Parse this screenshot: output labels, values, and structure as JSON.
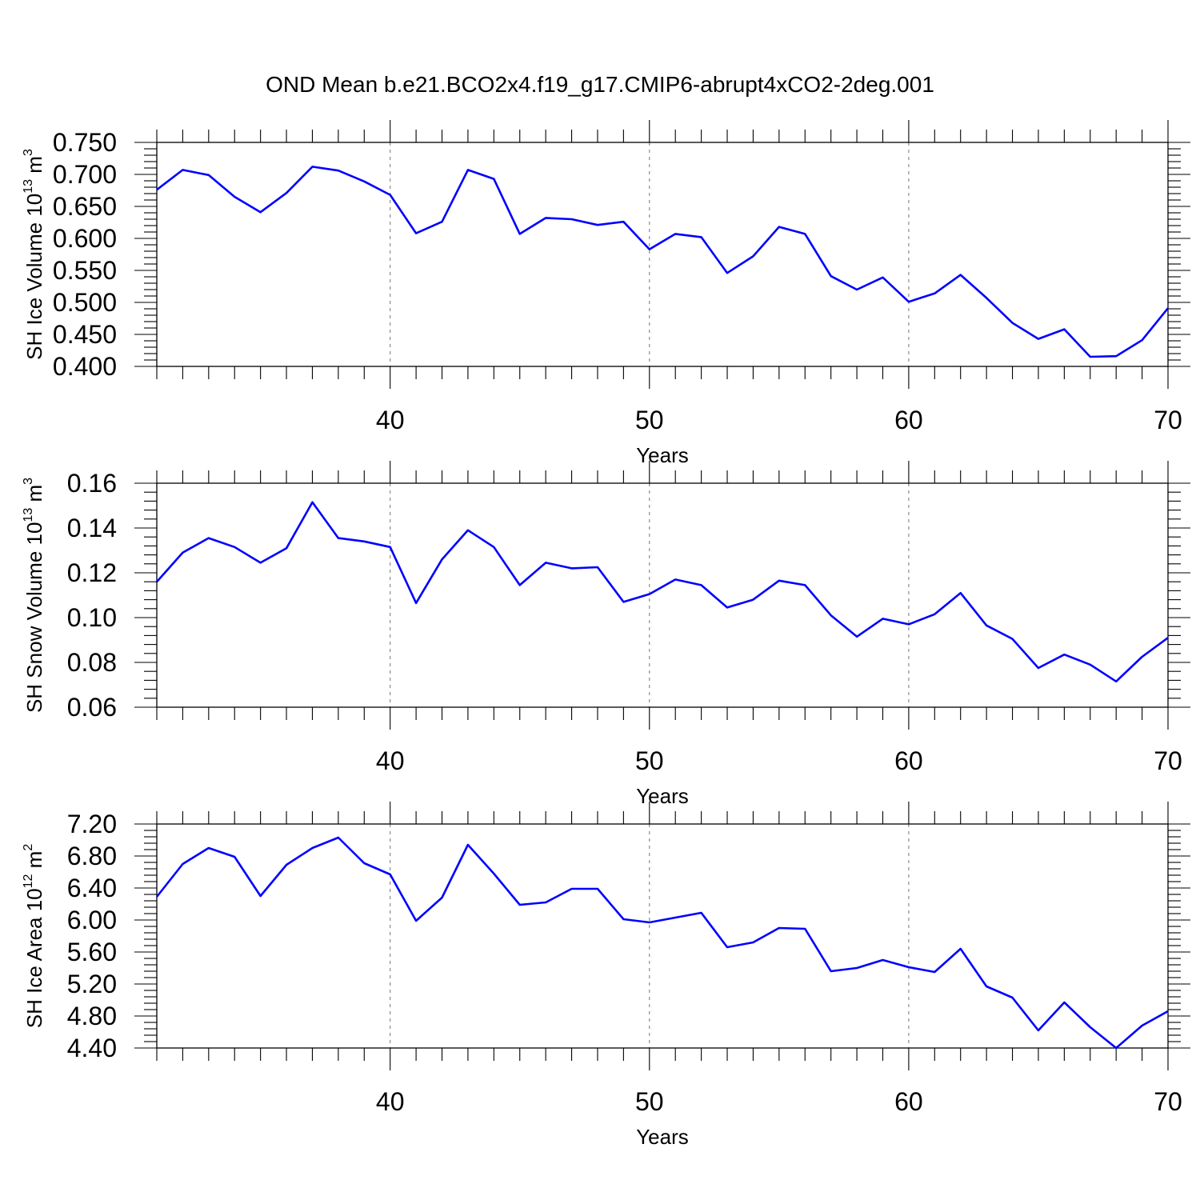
{
  "figure": {
    "title": "OND Mean b.e21.BCO2x4.f19_g17.CMIP6-abrupt4xCO2-2deg.001"
  },
  "colors": {
    "series": "#0000ff",
    "frame": "#000000",
    "grid": "#808080"
  },
  "chart_data": [
    {
      "type": "line",
      "xlabel": "Years",
      "ylabel": {
        "text": "SH Ice Volume 10",
        "exp": "13",
        "unit": " m",
        "unit_exp": "3"
      },
      "xlim": [
        31,
        70
      ],
      "ylim": [
        0.4,
        0.75
      ],
      "xticks": [
        40,
        50,
        60,
        70
      ],
      "yticks": [
        0.4,
        0.45,
        0.5,
        0.55,
        0.6,
        0.65,
        0.7,
        0.75
      ],
      "ytick_labels": [
        "0.400",
        "0.450",
        "0.500",
        "0.550",
        "0.600",
        "0.650",
        "0.700",
        "0.750"
      ],
      "grid": "vertical dashed at major x ticks",
      "x": [
        31,
        32,
        33,
        34,
        35,
        36,
        37,
        38,
        39,
        40,
        41,
        42,
        43,
        44,
        45,
        46,
        47,
        48,
        49,
        50,
        51,
        52,
        53,
        54,
        55,
        56,
        57,
        58,
        59,
        60,
        61,
        62,
        63,
        64,
        65,
        66,
        67,
        68,
        69,
        70
      ],
      "values": [
        0.676,
        0.707,
        0.699,
        0.665,
        0.641,
        0.671,
        0.712,
        0.706,
        0.689,
        0.668,
        0.608,
        0.626,
        0.707,
        0.693,
        0.607,
        0.632,
        0.63,
        0.621,
        0.626,
        0.583,
        0.607,
        0.602,
        0.546,
        0.572,
        0.618,
        0.607,
        0.541,
        0.52,
        0.539,
        0.501,
        0.514,
        0.543,
        0.507,
        0.468,
        0.443,
        0.458,
        0.415,
        0.416,
        0.441,
        0.491
      ]
    },
    {
      "type": "line",
      "xlabel": "Years",
      "ylabel": {
        "text": "SH Snow Volume 10",
        "exp": "13",
        "unit": " m",
        "unit_exp": "3"
      },
      "xlim": [
        31,
        70
      ],
      "ylim": [
        0.06,
        0.16
      ],
      "xticks": [
        40,
        50,
        60,
        70
      ],
      "yticks": [
        0.06,
        0.08,
        0.1,
        0.12,
        0.14,
        0.16
      ],
      "ytick_labels": [
        "0.06",
        "0.08",
        "0.10",
        "0.12",
        "0.14",
        "0.16"
      ],
      "grid": "vertical dashed at major x ticks",
      "x": [
        31,
        32,
        33,
        34,
        35,
        36,
        37,
        38,
        39,
        40,
        41,
        42,
        43,
        44,
        45,
        46,
        47,
        48,
        49,
        50,
        51,
        52,
        53,
        54,
        55,
        56,
        57,
        58,
        59,
        60,
        61,
        62,
        63,
        64,
        65,
        66,
        67,
        68,
        69,
        70
      ],
      "values": [
        0.116,
        0.129,
        0.1355,
        0.1315,
        0.1245,
        0.131,
        0.1515,
        0.1355,
        0.134,
        0.1315,
        0.1065,
        0.126,
        0.139,
        0.1315,
        0.1145,
        0.1245,
        0.122,
        0.1225,
        0.107,
        0.1105,
        0.117,
        0.1145,
        0.1045,
        0.108,
        0.1165,
        0.1145,
        0.101,
        0.0915,
        0.0995,
        0.097,
        0.1015,
        0.111,
        0.0965,
        0.0905,
        0.0775,
        0.0835,
        0.079,
        0.0715,
        0.0825,
        0.091
      ]
    },
    {
      "type": "line",
      "xlabel": "Years",
      "ylabel": {
        "text": "SH Ice Area 10",
        "exp": "12",
        "unit": " m",
        "unit_exp": "2"
      },
      "xlim": [
        31,
        70
      ],
      "ylim": [
        4.4,
        7.2
      ],
      "xticks": [
        40,
        50,
        60,
        70
      ],
      "yticks": [
        4.4,
        4.8,
        5.2,
        5.6,
        6.0,
        6.4,
        6.8,
        7.2
      ],
      "ytick_labels": [
        "4.40",
        "4.80",
        "5.20",
        "5.60",
        "6.00",
        "6.40",
        "6.80",
        "7.20"
      ],
      "grid": "vertical dashed at major x ticks",
      "x": [
        31,
        32,
        33,
        34,
        35,
        36,
        37,
        38,
        39,
        40,
        41,
        42,
        43,
        44,
        45,
        46,
        47,
        48,
        49,
        50,
        51,
        52,
        53,
        54,
        55,
        56,
        57,
        58,
        59,
        60,
        61,
        62,
        63,
        64,
        65,
        66,
        67,
        68,
        69,
        70
      ],
      "values": [
        6.29,
        6.7,
        6.9,
        6.79,
        6.3,
        6.69,
        6.9,
        7.03,
        6.71,
        6.57,
        5.99,
        6.28,
        6.94,
        6.58,
        6.19,
        6.22,
        6.39,
        6.39,
        6.01,
        5.97,
        6.03,
        6.09,
        5.66,
        5.72,
        5.9,
        5.89,
        5.36,
        5.4,
        5.5,
        5.41,
        5.35,
        5.64,
        5.17,
        5.03,
        4.62,
        4.97,
        4.66,
        4.4,
        4.68,
        4.86
      ]
    }
  ]
}
